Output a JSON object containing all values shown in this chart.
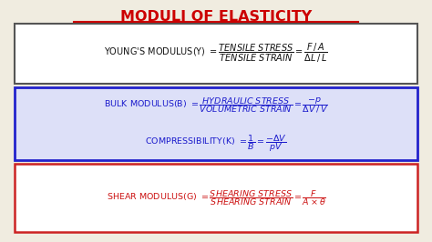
{
  "title": "MODULI OF ELASTICITY",
  "title_color": "#cc0000",
  "bg_color": "#f0ece0",
  "box1_border": "#555555",
  "box2_border": "#2222cc",
  "box3_border": "#cc2222",
  "box1_bg": "#ffffff",
  "box2_bg": "#dde0f8",
  "box3_bg": "#ffffff",
  "young_color": "#111111",
  "bulk_color": "#1a1acc",
  "shear_color": "#cc1111",
  "underline_color": "#cc0000"
}
